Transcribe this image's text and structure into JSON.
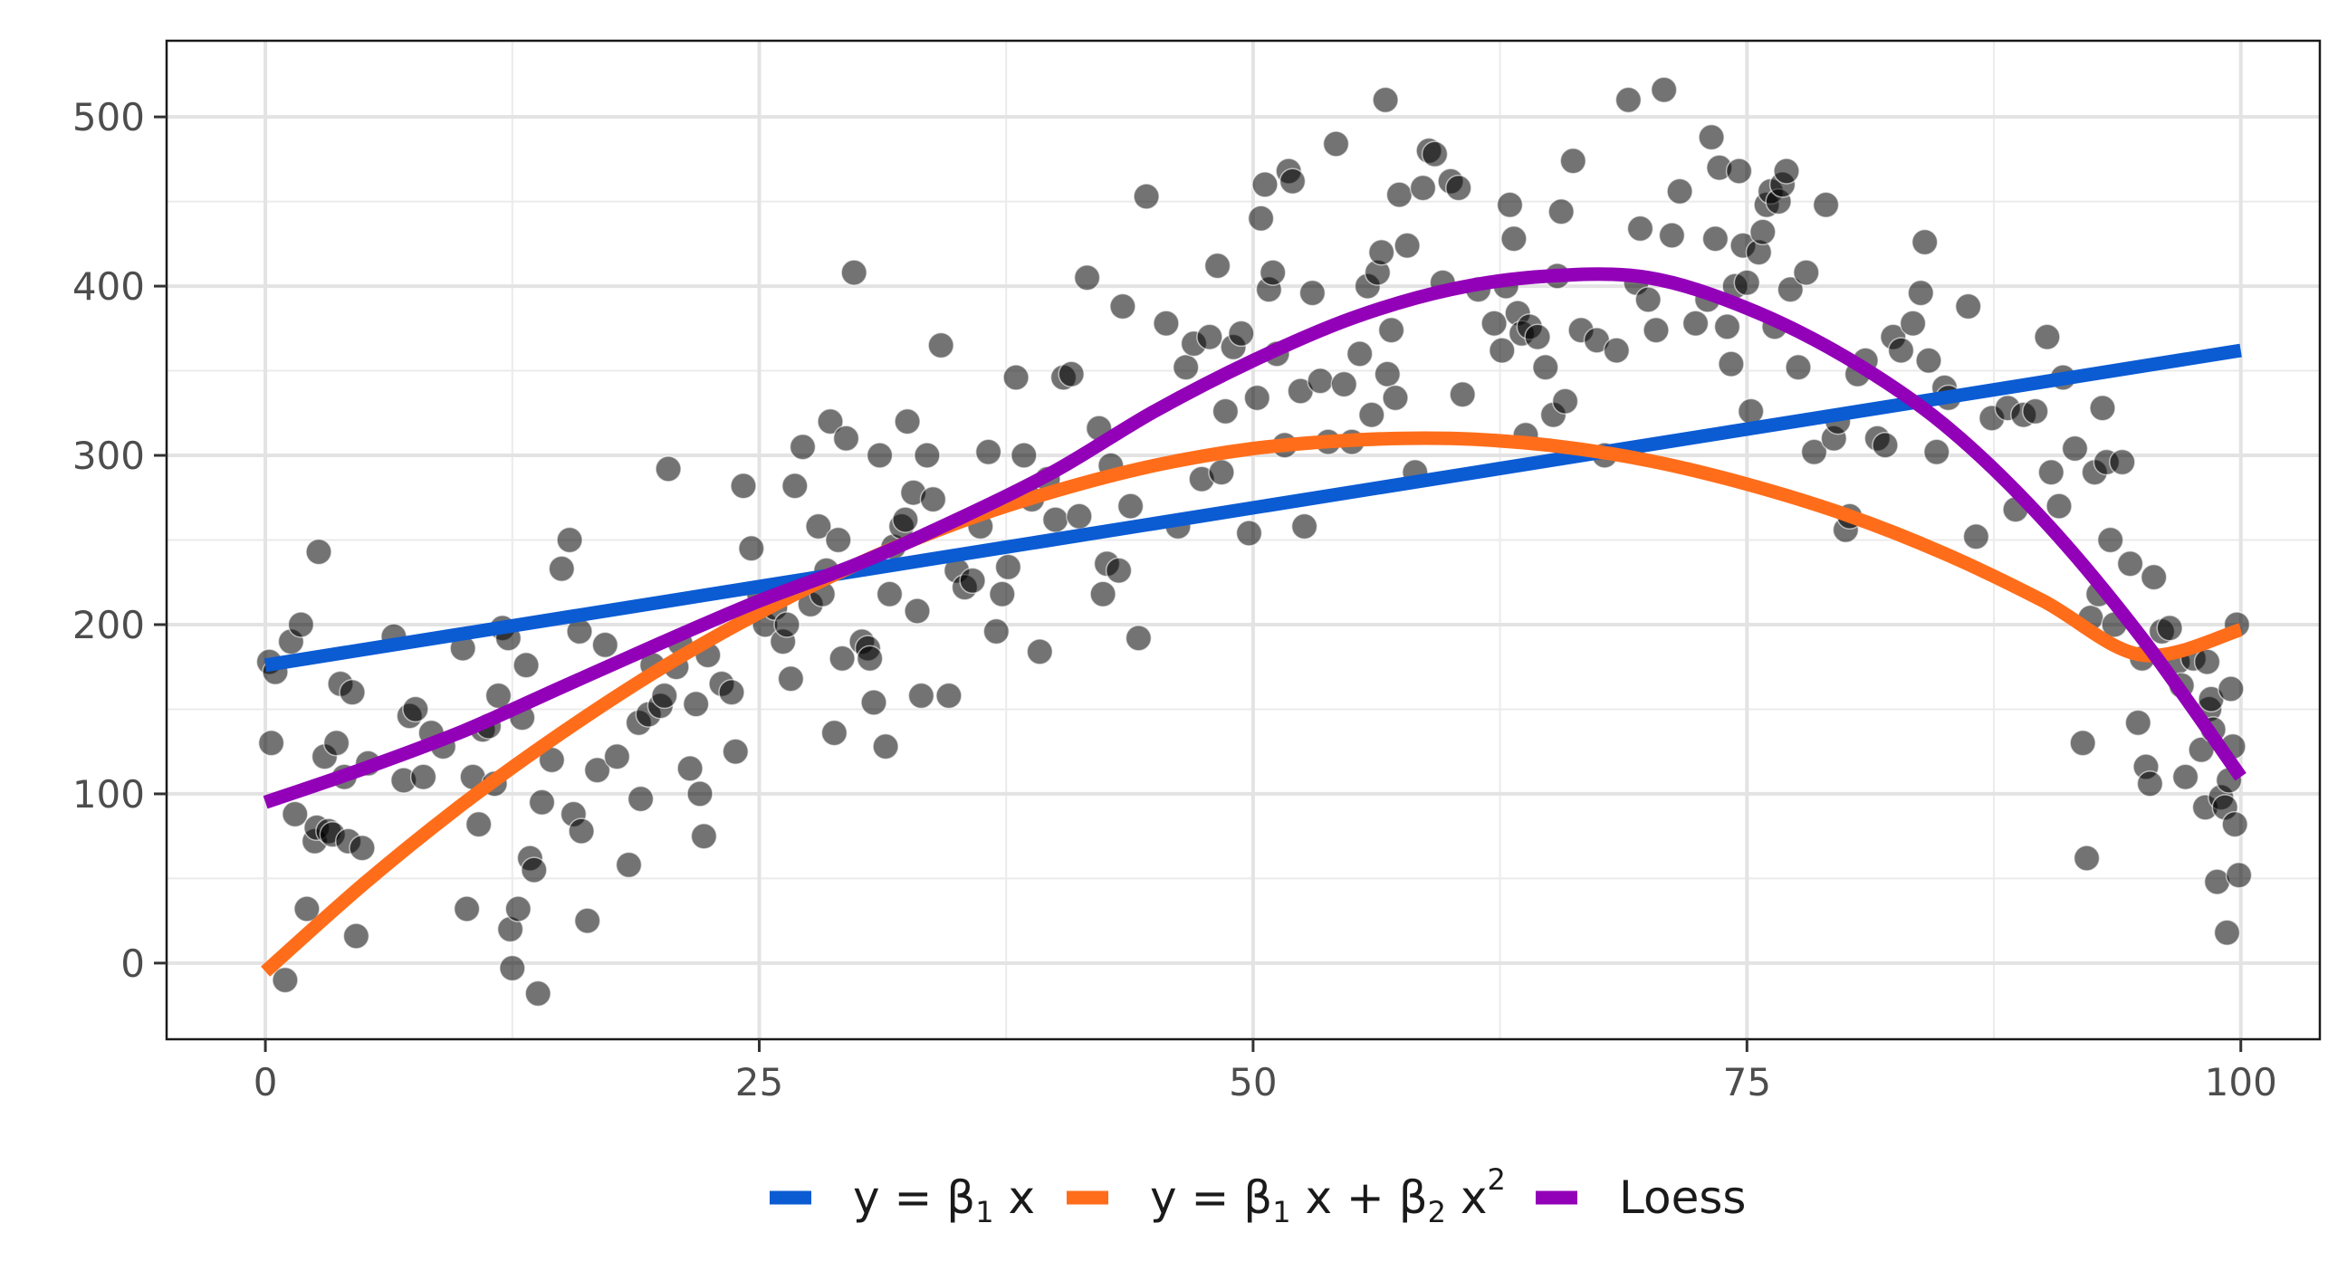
{
  "chart_data": {
    "type": "scatter",
    "title": "",
    "xlabel": "",
    "ylabel": "",
    "xlim": [
      -5,
      104
    ],
    "ylim": [
      -45,
      545
    ],
    "x_ticks": [
      0,
      25,
      50,
      75,
      100
    ],
    "y_ticks": [
      0,
      100,
      200,
      300,
      400,
      500
    ],
    "grid": true,
    "legend_position": "bottom",
    "colors": {
      "points": "#000000",
      "linear": "#0b5bd3",
      "quadratic": "#ff6d1a",
      "loess": "#9200b8"
    },
    "points": [
      [
        0.2,
        178
      ],
      [
        0.3,
        130
      ],
      [
        0.5,
        172
      ],
      [
        1,
        -10
      ],
      [
        1.3,
        190
      ],
      [
        1.5,
        88
      ],
      [
        1.8,
        200
      ],
      [
        2.1,
        32
      ],
      [
        2.5,
        72
      ],
      [
        2.6,
        80
      ],
      [
        2.7,
        243
      ],
      [
        3,
        122
      ],
      [
        3.2,
        78
      ],
      [
        3.4,
        76
      ],
      [
        3.6,
        130
      ],
      [
        3.8,
        165
      ],
      [
        4,
        110
      ],
      [
        4.2,
        72
      ],
      [
        4.4,
        160
      ],
      [
        4.6,
        16
      ],
      [
        4.9,
        68
      ],
      [
        5.2,
        118
      ],
      [
        6.5,
        193
      ],
      [
        7,
        108
      ],
      [
        7.3,
        146
      ],
      [
        7.6,
        150
      ],
      [
        8,
        110
      ],
      [
        8.4,
        136
      ],
      [
        9,
        128
      ],
      [
        10,
        186
      ],
      [
        10.2,
        32
      ],
      [
        10.5,
        110
      ],
      [
        10.8,
        82
      ],
      [
        11,
        138
      ],
      [
        11.3,
        140
      ],
      [
        11.6,
        106
      ],
      [
        11.8,
        158
      ],
      [
        12,
        198
      ],
      [
        12.3,
        192
      ],
      [
        12.4,
        20
      ],
      [
        12.5,
        -3
      ],
      [
        12.8,
        32
      ],
      [
        13,
        145
      ],
      [
        13.2,
        176
      ],
      [
        13.4,
        62
      ],
      [
        13.6,
        55
      ],
      [
        13.8,
        -18
      ],
      [
        14,
        95
      ],
      [
        14.5,
        120
      ],
      [
        15,
        233
      ],
      [
        15.4,
        250
      ],
      [
        15.6,
        88
      ],
      [
        15.9,
        196
      ],
      [
        16,
        78
      ],
      [
        16.3,
        25
      ],
      [
        16.8,
        114
      ],
      [
        17.2,
        188
      ],
      [
        17.8,
        122
      ],
      [
        18.4,
        58
      ],
      [
        18.9,
        142
      ],
      [
        19,
        97
      ],
      [
        19.4,
        147
      ],
      [
        19.6,
        176
      ],
      [
        20,
        152
      ],
      [
        20.2,
        158
      ],
      [
        20.4,
        292
      ],
      [
        20.8,
        175
      ],
      [
        21,
        189
      ],
      [
        21.5,
        115
      ],
      [
        21.8,
        153
      ],
      [
        22,
        100
      ],
      [
        22.2,
        75
      ],
      [
        22.4,
        182
      ],
      [
        23.1,
        165
      ],
      [
        23.6,
        160
      ],
      [
        23.8,
        125
      ],
      [
        24.2,
        282
      ],
      [
        24.6,
        245
      ],
      [
        25,
        218
      ],
      [
        25.3,
        200
      ],
      [
        25.8,
        210
      ],
      [
        26.2,
        190
      ],
      [
        26.4,
        200
      ],
      [
        26.6,
        168
      ],
      [
        26.8,
        282
      ],
      [
        27.2,
        305
      ],
      [
        27.6,
        212
      ],
      [
        28,
        258
      ],
      [
        28.2,
        218
      ],
      [
        28.4,
        232
      ],
      [
        28.6,
        320
      ],
      [
        28.8,
        136
      ],
      [
        29,
        250
      ],
      [
        29.2,
        180
      ],
      [
        29.4,
        310
      ],
      [
        29.8,
        408
      ],
      [
        30.2,
        190
      ],
      [
        30.5,
        186
      ],
      [
        30.6,
        180
      ],
      [
        30.8,
        154
      ],
      [
        31.1,
        300
      ],
      [
        31.4,
        128
      ],
      [
        31.6,
        218
      ],
      [
        31.8,
        246
      ],
      [
        32.2,
        258
      ],
      [
        32.4,
        262
      ],
      [
        32.5,
        320
      ],
      [
        32.8,
        278
      ],
      [
        33,
        208
      ],
      [
        33.2,
        158
      ],
      [
        33.5,
        300
      ],
      [
        33.8,
        274
      ],
      [
        34.2,
        365
      ],
      [
        34.6,
        158
      ],
      [
        35,
        232
      ],
      [
        35.4,
        222
      ],
      [
        35.8,
        226
      ],
      [
        36.2,
        258
      ],
      [
        36.6,
        302
      ],
      [
        37,
        196
      ],
      [
        37.3,
        218
      ],
      [
        37.6,
        234
      ],
      [
        38,
        346
      ],
      [
        38.4,
        300
      ],
      [
        38.8,
        274
      ],
      [
        39.2,
        184
      ],
      [
        39.6,
        286
      ],
      [
        40,
        262
      ],
      [
        40.4,
        346
      ],
      [
        40.8,
        348
      ],
      [
        41.2,
        264
      ],
      [
        41.6,
        405
      ],
      [
        42.2,
        316
      ],
      [
        42.4,
        218
      ],
      [
        42.6,
        236
      ],
      [
        42.8,
        294
      ],
      [
        43.2,
        232
      ],
      [
        43.4,
        388
      ],
      [
        43.8,
        270
      ],
      [
        44.2,
        192
      ],
      [
        44.6,
        453
      ],
      [
        45.6,
        378
      ],
      [
        46.2,
        258
      ],
      [
        46.6,
        352
      ],
      [
        47,
        366
      ],
      [
        47.4,
        286
      ],
      [
        47.8,
        370
      ],
      [
        48.2,
        412
      ],
      [
        48.4,
        290
      ],
      [
        48.6,
        326
      ],
      [
        49,
        364
      ],
      [
        49.4,
        372
      ],
      [
        49.8,
        254
      ],
      [
        50.2,
        334
      ],
      [
        50.4,
        440
      ],
      [
        50.6,
        460
      ],
      [
        50.8,
        398
      ],
      [
        51,
        408
      ],
      [
        51.2,
        360
      ],
      [
        51.6,
        306
      ],
      [
        51.8,
        468
      ],
      [
        52,
        462
      ],
      [
        52.4,
        338
      ],
      [
        52.6,
        258
      ],
      [
        53,
        396
      ],
      [
        53.4,
        344
      ],
      [
        53.8,
        308
      ],
      [
        54.2,
        484
      ],
      [
        54.6,
        342
      ],
      [
        55,
        308
      ],
      [
        55.4,
        360
      ],
      [
        55.8,
        400
      ],
      [
        56,
        324
      ],
      [
        56.3,
        408
      ],
      [
        56.5,
        420
      ],
      [
        56.7,
        510
      ],
      [
        56.8,
        348
      ],
      [
        57,
        374
      ],
      [
        57.2,
        334
      ],
      [
        57.4,
        454
      ],
      [
        57.8,
        424
      ],
      [
        58.2,
        290
      ],
      [
        58.6,
        458
      ],
      [
        58.9,
        480
      ],
      [
        59.2,
        478
      ],
      [
        59.6,
        402
      ],
      [
        60,
        462
      ],
      [
        60.4,
        458
      ],
      [
        60.6,
        336
      ],
      [
        61.4,
        398
      ],
      [
        62.2,
        378
      ],
      [
        62.6,
        362
      ],
      [
        62.8,
        400
      ],
      [
        63,
        448
      ],
      [
        63.2,
        428
      ],
      [
        63.4,
        384
      ],
      [
        63.6,
        372
      ],
      [
        63.8,
        312
      ],
      [
        64,
        376
      ],
      [
        64.4,
        370
      ],
      [
        64.8,
        352
      ],
      [
        65.2,
        324
      ],
      [
        65.4,
        406
      ],
      [
        65.6,
        444
      ],
      [
        65.8,
        332
      ],
      [
        66.2,
        474
      ],
      [
        66.6,
        374
      ],
      [
        67.4,
        368
      ],
      [
        67.8,
        300
      ],
      [
        68.4,
        362
      ],
      [
        69,
        510
      ],
      [
        69.4,
        402
      ],
      [
        69.6,
        434
      ],
      [
        70,
        392
      ],
      [
        70.4,
        374
      ],
      [
        70.8,
        516
      ],
      [
        71.2,
        430
      ],
      [
        71.6,
        456
      ],
      [
        72.4,
        378
      ],
      [
        73,
        392
      ],
      [
        73.2,
        488
      ],
      [
        73.4,
        428
      ],
      [
        73.6,
        470
      ],
      [
        74,
        376
      ],
      [
        74.2,
        354
      ],
      [
        74.4,
        400
      ],
      [
        74.6,
        468
      ],
      [
        74.8,
        424
      ],
      [
        75,
        402
      ],
      [
        75.2,
        326
      ],
      [
        75.6,
        420
      ],
      [
        75.8,
        432
      ],
      [
        76,
        448
      ],
      [
        76.2,
        456
      ],
      [
        76.4,
        376
      ],
      [
        76.6,
        450
      ],
      [
        76.8,
        460
      ],
      [
        77,
        468
      ],
      [
        77.2,
        398
      ],
      [
        77.6,
        352
      ],
      [
        78,
        408
      ],
      [
        78.4,
        302
      ],
      [
        79,
        448
      ],
      [
        79.4,
        310
      ],
      [
        79.6,
        320
      ],
      [
        80,
        256
      ],
      [
        80.2,
        264
      ],
      [
        80.6,
        348
      ],
      [
        81,
        356
      ],
      [
        81.6,
        310
      ],
      [
        82,
        306
      ],
      [
        82.4,
        370
      ],
      [
        82.8,
        362
      ],
      [
        83.4,
        378
      ],
      [
        83.8,
        396
      ],
      [
        84,
        426
      ],
      [
        84.2,
        356
      ],
      [
        84.6,
        302
      ],
      [
        85,
        340
      ],
      [
        85.2,
        334
      ],
      [
        86.2,
        388
      ],
      [
        86.6,
        252
      ],
      [
        87.4,
        322
      ],
      [
        88.2,
        328
      ],
      [
        88.6,
        268
      ],
      [
        89,
        324
      ],
      [
        89.6,
        326
      ],
      [
        90.2,
        370
      ],
      [
        90.4,
        290
      ],
      [
        90.8,
        270
      ],
      [
        91,
        346
      ],
      [
        91.6,
        304
      ],
      [
        92,
        130
      ],
      [
        92.2,
        62
      ],
      [
        92.4,
        204
      ],
      [
        92.6,
        290
      ],
      [
        92.8,
        218
      ],
      [
        93,
        328
      ],
      [
        93.2,
        296
      ],
      [
        93.4,
        250
      ],
      [
        93.6,
        200
      ],
      [
        94,
        296
      ],
      [
        94.4,
        236
      ],
      [
        94.8,
        142
      ],
      [
        95,
        180
      ],
      [
        95.2,
        116
      ],
      [
        95.4,
        106
      ],
      [
        95.6,
        228
      ],
      [
        96,
        196
      ],
      [
        96.4,
        198
      ],
      [
        96.8,
        178
      ],
      [
        97,
        164
      ],
      [
        97.2,
        110
      ],
      [
        97.6,
        180
      ],
      [
        98,
        126
      ],
      [
        98.2,
        92
      ],
      [
        98.3,
        178
      ],
      [
        98.4,
        150
      ],
      [
        98.5,
        156
      ],
      [
        98.6,
        138
      ],
      [
        98.8,
        48
      ],
      [
        99,
        98
      ],
      [
        99.2,
        92
      ],
      [
        99.3,
        18
      ],
      [
        99.4,
        108
      ],
      [
        99.5,
        162
      ],
      [
        99.6,
        128
      ],
      [
        99.7,
        82
      ],
      [
        99.8,
        200
      ],
      [
        99.9,
        52
      ]
    ],
    "series": [
      {
        "name": "y = β1 x",
        "label_parts": [
          "y = β",
          "1",
          " x"
        ],
        "x": [
          0,
          100
        ],
        "y": [
          176,
          362
        ]
      },
      {
        "name": "y = β1 x + β2 x2",
        "label_parts": [
          "y = β",
          "1",
          " x + β",
          "2",
          " x",
          "2"
        ],
        "x": [
          0,
          5,
          10,
          15,
          20,
          25,
          30,
          35,
          40,
          45,
          50,
          55,
          60,
          65,
          70,
          75,
          80,
          85,
          90,
          95,
          100
        ],
        "y": [
          -5,
          47,
          94,
          136,
          174,
          207,
          236,
          260,
          279,
          294,
          304,
          309,
          310,
          306,
          297,
          283,
          265,
          242,
          214,
          182,
          197
        ]
      },
      {
        "name": "Loess",
        "label_parts": [
          "Loess"
        ],
        "x": [
          0,
          5,
          10,
          15,
          20,
          25,
          30,
          35,
          40,
          45,
          50,
          55,
          60,
          65,
          70,
          75,
          80,
          85,
          90,
          95,
          100
        ],
        "y": [
          95,
          115,
          137,
          163,
          189,
          214,
          236,
          262,
          291,
          326,
          356,
          381,
          398,
          406,
          405,
          387,
          358,
          318,
          262,
          192,
          110
        ]
      }
    ]
  }
}
